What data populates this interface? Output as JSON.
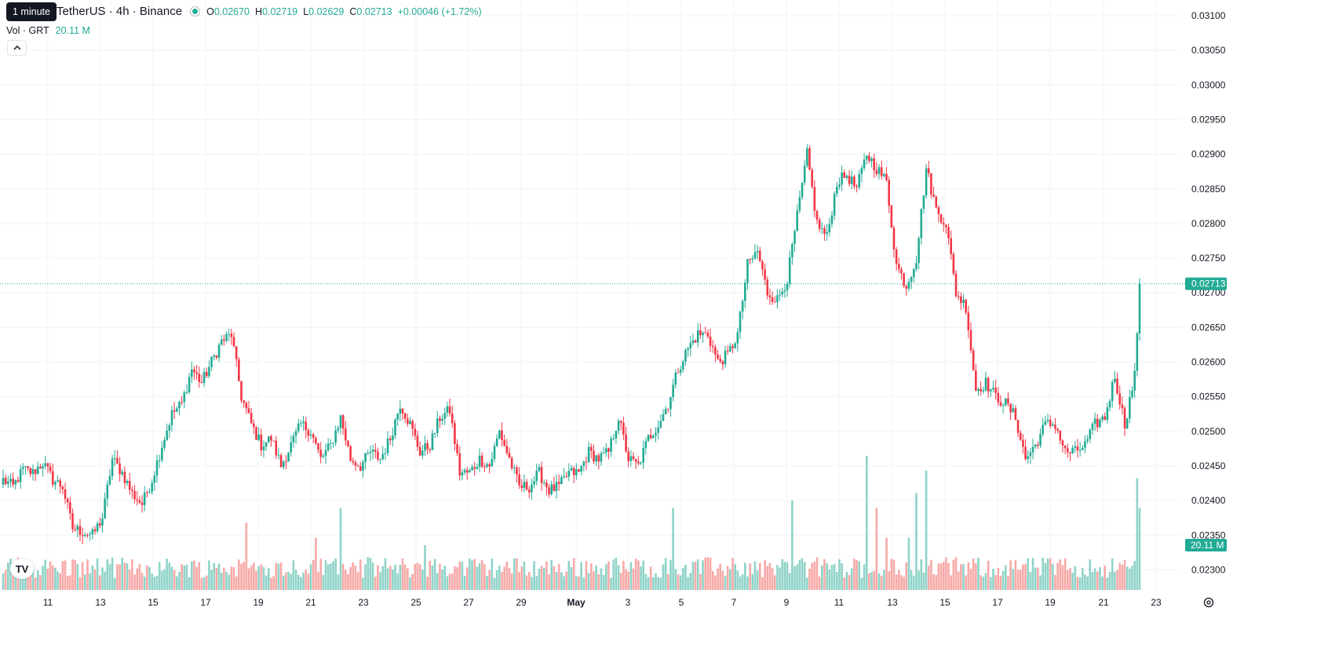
{
  "legend": {
    "title": "TetherUS · 4h · Binance",
    "o_label": "O",
    "o_value": "0.02670",
    "h_label": "H",
    "h_value": "0.02719",
    "l_label": "L",
    "l_value": "0.02629",
    "c_label": "C",
    "c_value": "0.02713",
    "change": "+0.00046 (+1.72%)"
  },
  "volume": {
    "label": "Vol · GRT",
    "value": "20.11 M"
  },
  "tooltip": "1 minute",
  "logo": "TV",
  "colors": {
    "up": "#22ab94",
    "down": "#f23645",
    "up_vol": "#8fd3c8",
    "down_vol": "#f7a9a7",
    "grid": "#f0f3fa",
    "axis_text": "#131722"
  },
  "chart_data": {
    "type": "candlestick",
    "symbol": "TetherUS",
    "interval": "4h",
    "exchange": "Binance",
    "y_axis_ticks": [
      "0.02300",
      "0.02350",
      "0.02400",
      "0.02450",
      "0.02500",
      "0.02550",
      "0.02600",
      "0.02650",
      "0.02700",
      "0.02750",
      "0.02800",
      "0.02850",
      "0.02900",
      "0.02950",
      "0.03000",
      "0.03050",
      "0.03100"
    ],
    "x_axis_ticks": [
      "11",
      "13",
      "15",
      "17",
      "19",
      "21",
      "23",
      "25",
      "27",
      "29",
      "May",
      "3",
      "5",
      "7",
      "9",
      "11",
      "13",
      "15",
      "17",
      "19",
      "21",
      "23"
    ],
    "last_price_label": "0.02713",
    "last_volume_label": "20.11 M",
    "ylim": [
      0.0227,
      0.0311
    ],
    "anchors": [
      [
        0,
        0.0243
      ],
      [
        4,
        0.0242
      ],
      [
        8,
        0.02445
      ],
      [
        12,
        0.0244
      ],
      [
        16,
        0.02455
      ],
      [
        20,
        0.0243
      ],
      [
        24,
        0.0242
      ],
      [
        28,
        0.0236
      ],
      [
        32,
        0.02355
      ],
      [
        36,
        0.0235
      ],
      [
        40,
        0.02375
      ],
      [
        44,
        0.0246
      ],
      [
        48,
        0.0244
      ],
      [
        52,
        0.0241
      ],
      [
        56,
        0.02395
      ],
      [
        60,
        0.0243
      ],
      [
        64,
        0.0248
      ],
      [
        68,
        0.02525
      ],
      [
        72,
        0.0254
      ],
      [
        76,
        0.0259
      ],
      [
        80,
        0.0257
      ],
      [
        84,
        0.026
      ],
      [
        88,
        0.0263
      ],
      [
        92,
        0.0264
      ],
      [
        96,
        0.0255
      ],
      [
        100,
        0.0251
      ],
      [
        104,
        0.0248
      ],
      [
        108,
        0.0249
      ],
      [
        112,
        0.0245
      ],
      [
        116,
        0.0248
      ],
      [
        120,
        0.0251
      ],
      [
        124,
        0.025
      ],
      [
        128,
        0.0246
      ],
      [
        132,
        0.0248
      ],
      [
        136,
        0.0252
      ],
      [
        140,
        0.0246
      ],
      [
        144,
        0.0245
      ],
      [
        148,
        0.0247
      ],
      [
        152,
        0.0246
      ],
      [
        156,
        0.0249
      ],
      [
        160,
        0.0254
      ],
      [
        164,
        0.0251
      ],
      [
        168,
        0.0247
      ],
      [
        172,
        0.0248
      ],
      [
        176,
        0.0252
      ],
      [
        180,
        0.0253
      ],
      [
        184,
        0.0244
      ],
      [
        188,
        0.0244
      ],
      [
        192,
        0.0246
      ],
      [
        196,
        0.0245
      ],
      [
        200,
        0.025
      ],
      [
        204,
        0.0246
      ],
      [
        208,
        0.0242
      ],
      [
        212,
        0.0242
      ],
      [
        216,
        0.0244
      ],
      [
        220,
        0.02415
      ],
      [
        224,
        0.0242
      ],
      [
        228,
        0.0244
      ],
      [
        232,
        0.0244
      ],
      [
        236,
        0.0247
      ],
      [
        240,
        0.0246
      ],
      [
        244,
        0.0247
      ],
      [
        248,
        0.0252
      ],
      [
        252,
        0.0246
      ],
      [
        256,
        0.0245
      ],
      [
        260,
        0.0249
      ],
      [
        264,
        0.0251
      ],
      [
        268,
        0.0254
      ],
      [
        272,
        0.0259
      ],
      [
        276,
        0.0262
      ],
      [
        280,
        0.0264
      ],
      [
        284,
        0.0264
      ],
      [
        288,
        0.026
      ],
      [
        292,
        0.0261
      ],
      [
        296,
        0.0264
      ],
      [
        300,
        0.0274
      ],
      [
        304,
        0.0276
      ],
      [
        308,
        0.027
      ],
      [
        312,
        0.0269
      ],
      [
        316,
        0.0272
      ],
      [
        320,
        0.0281
      ],
      [
        324,
        0.029
      ],
      [
        328,
        0.028
      ],
      [
        332,
        0.0278
      ],
      [
        336,
        0.0286
      ],
      [
        340,
        0.0287
      ],
      [
        344,
        0.0285
      ],
      [
        348,
        0.029
      ],
      [
        352,
        0.0288
      ],
      [
        356,
        0.0286
      ],
      [
        360,
        0.0274
      ],
      [
        364,
        0.0271
      ],
      [
        368,
        0.0275
      ],
      [
        372,
        0.0288
      ],
      [
        376,
        0.0282
      ],
      [
        380,
        0.028
      ],
      [
        384,
        0.027
      ],
      [
        388,
        0.0268
      ],
      [
        392,
        0.0256
      ],
      [
        396,
        0.0257
      ],
      [
        400,
        0.0255
      ],
      [
        404,
        0.0254
      ],
      [
        408,
        0.0252
      ],
      [
        412,
        0.0246
      ],
      [
        416,
        0.0248
      ],
      [
        420,
        0.0251
      ],
      [
        424,
        0.0251
      ],
      [
        428,
        0.0247
      ],
      [
        432,
        0.0247
      ],
      [
        436,
        0.0248
      ],
      [
        440,
        0.0251
      ],
      [
        444,
        0.0252
      ],
      [
        448,
        0.0258
      ],
      [
        452,
        0.0251
      ],
      [
        456,
        0.0258
      ],
      [
        458,
        0.02713
      ]
    ]
  }
}
